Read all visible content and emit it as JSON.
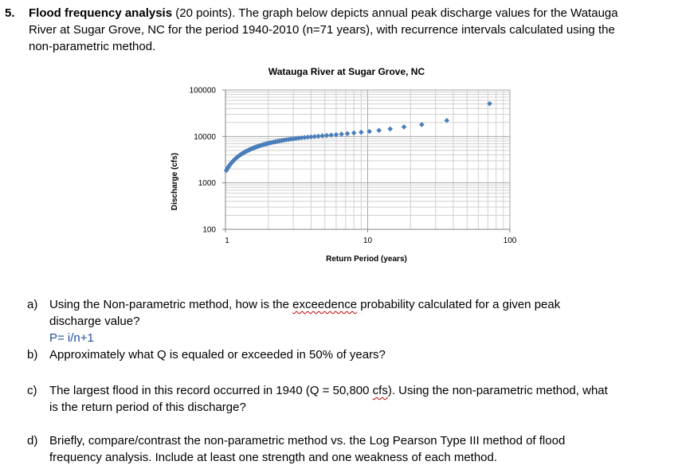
{
  "question": {
    "number": "5.",
    "title": "Flood frequency analysis",
    "points": "(20 points).",
    "text_line1": "The graph below depicts annual peak discharge values for the Watauga",
    "text_line2": "River at Sugar Grove, NC for the period 1940-2010 (n=71 years), with recurrence intervals calculated using the",
    "text_line3": "non-parametric method."
  },
  "parts": {
    "a": {
      "label": "a)",
      "line1_pre": "Using the Non-parametric method, how is the ",
      "line1_squig": "exceedence",
      "line1_post": " probability calculated for a given peak",
      "line2": "discharge value?",
      "answer": "P= i/n+1"
    },
    "b": {
      "label": "b)",
      "line1": "Approximately what Q is equaled or exceeded in 50% of years?"
    },
    "c": {
      "label": "c)",
      "line1_pre": "The largest flood in this record occurred in 1940 (Q = 50,800 ",
      "line1_squig": "cfs",
      "line1_post": "). Using the non-parametric method, what",
      "line2": "is the return period of this discharge?"
    },
    "d": {
      "label": "d)",
      "line1": "Briefly, compare/contrast the non-parametric method vs. the Log Pearson Type III method of flood",
      "line2": "frequency analysis. Include at least one strength and one weakness of each method."
    }
  },
  "chart_data": {
    "type": "scatter",
    "title": "Watauga River at Sugar Grove, NC",
    "xlabel": "Return Period (years)",
    "ylabel": "Discharge (cfs)",
    "x_scale": "log",
    "y_scale": "log",
    "xlim": [
      1,
      100
    ],
    "ylim": [
      100,
      100000
    ],
    "x_ticks": [
      "1",
      "10",
      "100"
    ],
    "y_ticks": [
      "100",
      "1000",
      "10000",
      "100000"
    ],
    "grid": true,
    "marker_color": "#4a7ebb",
    "n": 71,
    "largest_flood": 50800,
    "series": [
      {
        "values": [
          50800,
          22000,
          18000,
          16000,
          14500,
          13500,
          12800,
          12300,
          11900,
          11500,
          11200,
          10900,
          10700,
          10500,
          10300,
          10100,
          9950,
          9800,
          9650,
          9500,
          9350,
          9200,
          9050,
          8900,
          8750,
          8600,
          8450,
          8300,
          8150,
          8000,
          7850,
          7700,
          7550,
          7400,
          7250,
          7100,
          6950,
          6800,
          6650,
          6500,
          6350,
          6200,
          6050,
          5900,
          5750,
          5600,
          5450,
          5300,
          5150,
          5000,
          4850,
          4700,
          4550,
          4400,
          4250,
          4100,
          3950,
          3800,
          3650,
          3500,
          3350,
          3200,
          3050,
          2900,
          2750,
          2600,
          2450,
          2300,
          2150,
          2000,
          1850
        ]
      }
    ]
  }
}
